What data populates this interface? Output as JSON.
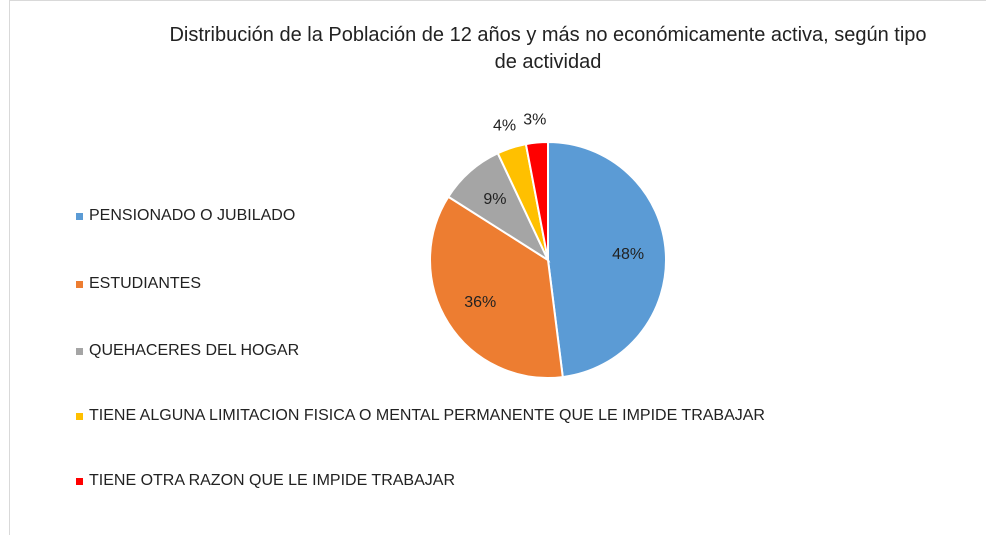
{
  "chart_data": {
    "type": "pie",
    "title": "Distribución de la Población de 12 años y más no económicamente activa, según tipo de actividad",
    "categories": [
      "PENSIONADO O JUBILADO",
      "ESTUDIANTES",
      "QUEHACERES DEL HOGAR",
      "TIENE ALGUNA LIMITACION FISICA O MENTAL PERMANENTE QUE LE IMPIDE TRABAJAR",
      "TIENE OTRA RAZON QUE LE IMPIDE TRABAJAR"
    ],
    "values": [
      48,
      36,
      9,
      4,
      3
    ],
    "value_labels": [
      "48%",
      "36%",
      "9%",
      "4%",
      "3%"
    ],
    "colors": [
      "#5b9bd5",
      "#ed7d31",
      "#a5a5a5",
      "#ffc000",
      "#ff0000"
    ],
    "legend": "left"
  }
}
